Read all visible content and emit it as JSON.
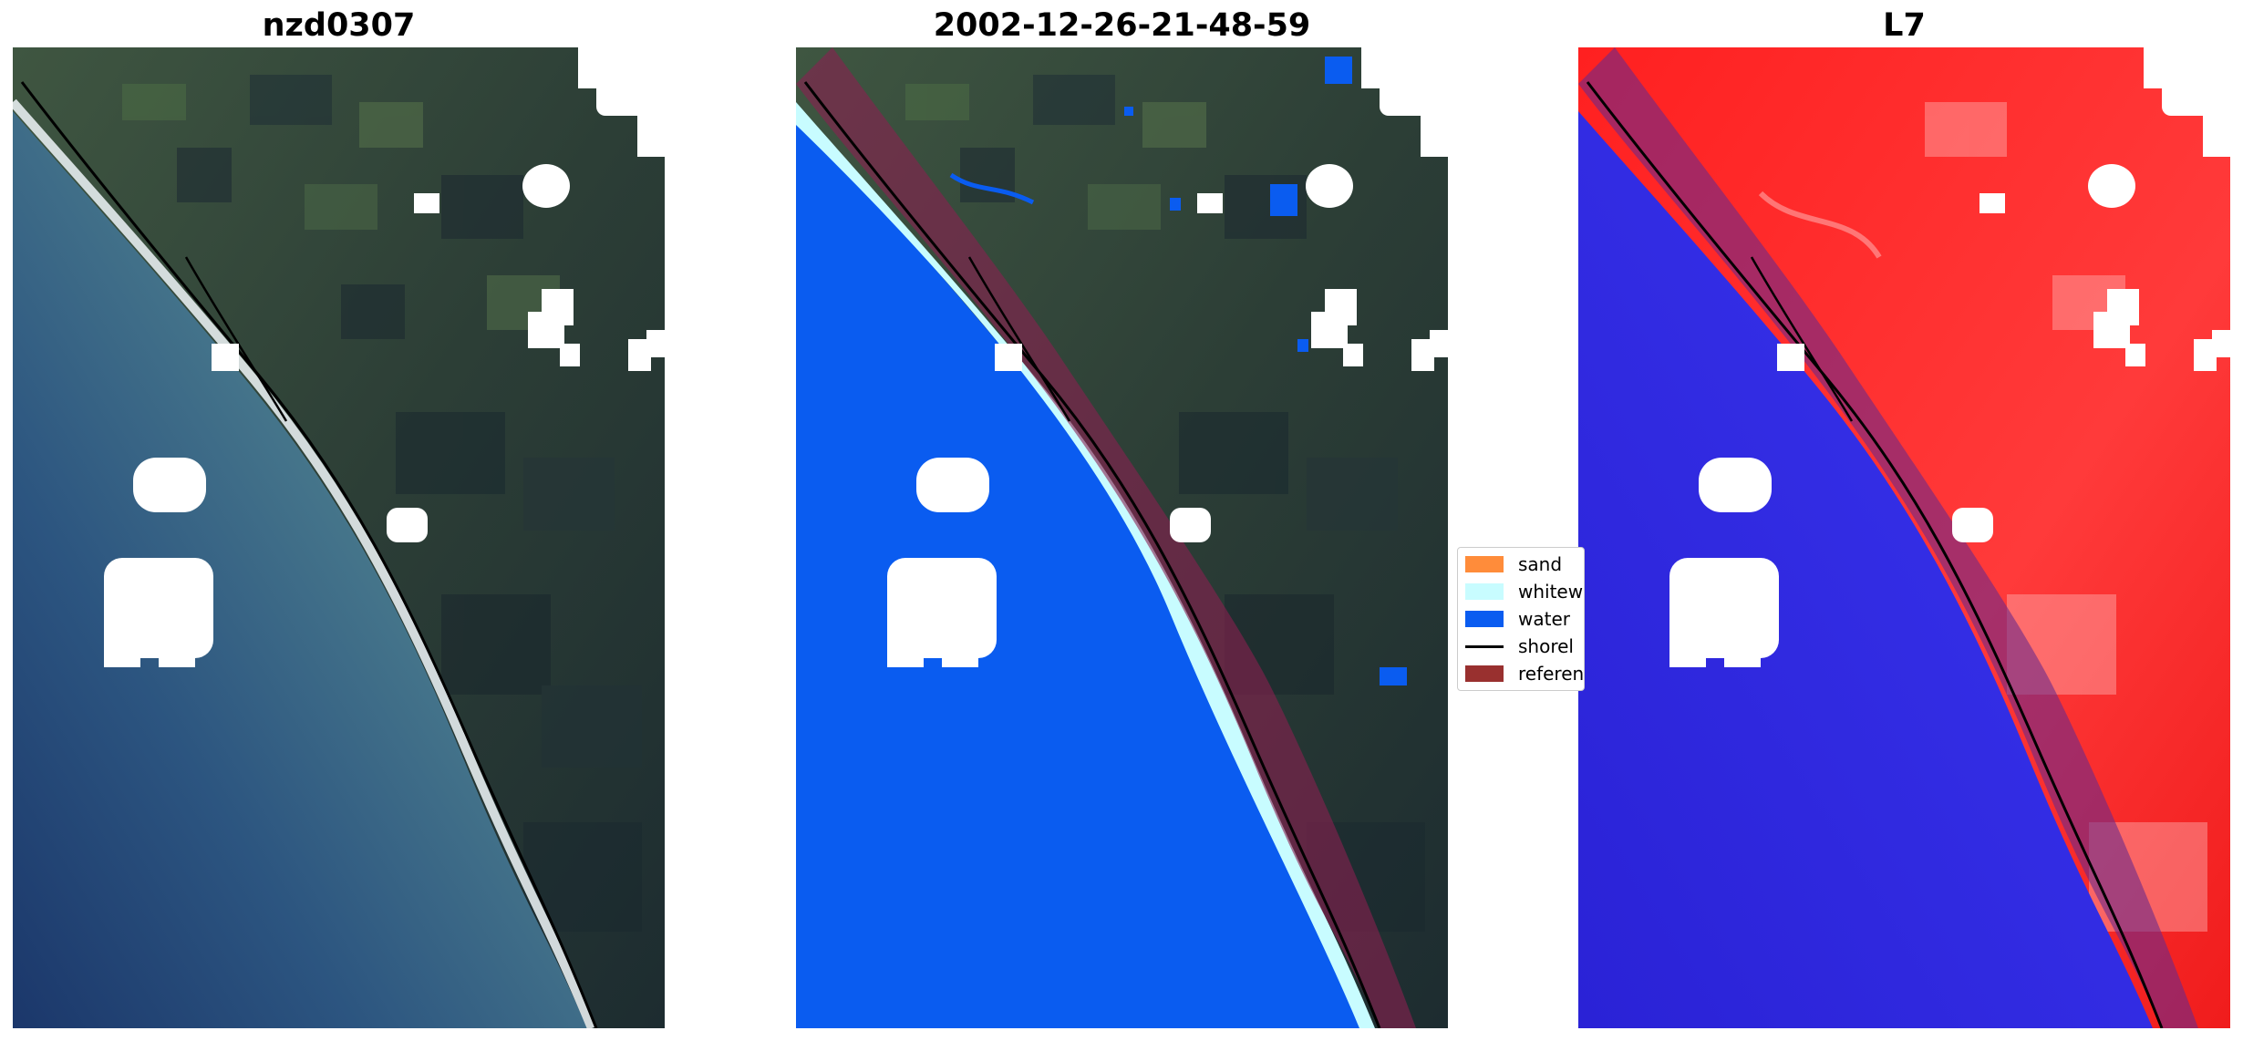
{
  "panels": [
    {
      "title": "nzd0307"
    },
    {
      "title": "2002-12-26-21-48-59"
    },
    {
      "title": "L7"
    }
  ],
  "legend": {
    "items": [
      {
        "label": "sand",
        "color": "#ff8c3a",
        "kind": "patch"
      },
      {
        "label": "whitew",
        "color": "#c8fcff",
        "kind": "patch"
      },
      {
        "label": "water",
        "color": "#0a5cf0",
        "kind": "patch"
      },
      {
        "label": "shorel",
        "color": "#000000",
        "kind": "line"
      },
      {
        "label": "referen",
        "color": "#99302f",
        "kind": "patch"
      }
    ]
  },
  "colors": {
    "land": "#34453a",
    "land_dark": "#1b2a2e",
    "sea_shallow": "#4f8190",
    "sea_deep": "#1d3b6a",
    "beach": "#e6ecee",
    "water_class": "#0a5cf0",
    "whitewater_class": "#c8fcff",
    "reference_buffer": "#8a2050",
    "mndwi_land": "#ff1f1f",
    "mndwi_water": "#2a22e6",
    "cloud": "#ffffff"
  }
}
